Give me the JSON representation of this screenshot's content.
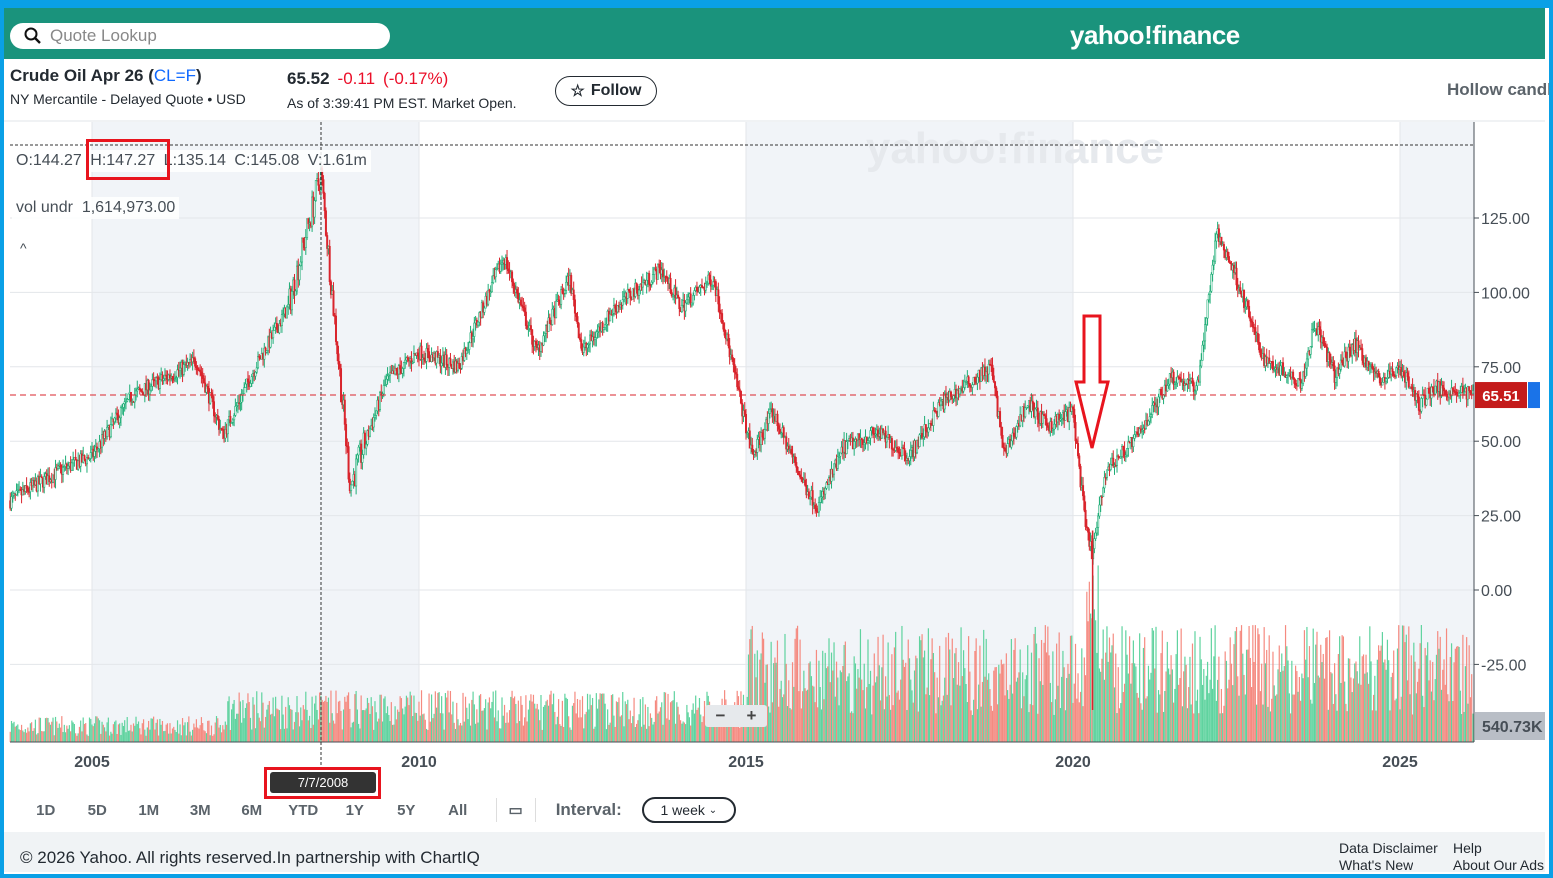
{
  "header": {
    "search_placeholder": "Quote Lookup",
    "logo": "yahoo!finance"
  },
  "quote": {
    "title": "Crude Oil Apr 26",
    "symbol": "CL=F",
    "subtitle": "NY Mercantile - Delayed Quote • USD",
    "price": "65.52",
    "change": "-0.11",
    "change_pct": "(-0.17%)",
    "as_of": "As of 3:39:41 PM EST. Market Open.",
    "follow_label": "Follow",
    "chart_type": "Hollow candle"
  },
  "crosshair": {
    "open": "O:144.27",
    "high": "H:147.27",
    "low": "L:135.14",
    "close": "C:145.08",
    "volume": "V:1.61m",
    "vol_undr_label": "vol undr",
    "vol_undr_value": "1,614,973.00",
    "date": "7/7/2008"
  },
  "chart_data": {
    "type": "candlestick",
    "y_ticks": [
      "125.00",
      "100.00",
      "75.00",
      "50.00",
      "25.00",
      "0.00",
      "-25.00"
    ],
    "x_ticks": [
      "2005",
      "2010",
      "2015",
      "2020",
      "2025"
    ],
    "ylim": [
      -45,
      145
    ],
    "current_price_label": "65.51",
    "volume_label": "540.73K",
    "up_color": "#1ead76",
    "down_color": "#d9252d",
    "watermark": "yahoo!finance",
    "price_path": [
      [
        2003.75,
        30
      ],
      [
        2004.5,
        40
      ],
      [
        2005.0,
        45
      ],
      [
        2005.6,
        65
      ],
      [
        2006.6,
        77
      ],
      [
        2007.0,
        52
      ],
      [
        2007.5,
        75
      ],
      [
        2008.0,
        95
      ],
      [
        2008.5,
        140
      ],
      [
        2008.95,
        35
      ],
      [
        2009.5,
        70
      ],
      [
        2010,
        80
      ],
      [
        2010.6,
        75
      ],
      [
        2011.3,
        112
      ],
      [
        2011.8,
        80
      ],
      [
        2012.3,
        105
      ],
      [
        2012.5,
        80
      ],
      [
        2013,
        95
      ],
      [
        2013.7,
        108
      ],
      [
        2014,
        95
      ],
      [
        2014.5,
        105
      ],
      [
        2014.9,
        65
      ],
      [
        2015.1,
        45
      ],
      [
        2015.4,
        60
      ],
      [
        2015.9,
        35
      ],
      [
        2016.1,
        28
      ],
      [
        2016.5,
        48
      ],
      [
        2017,
        53
      ],
      [
        2017.5,
        45
      ],
      [
        2018,
        63
      ],
      [
        2018.75,
        75
      ],
      [
        2018.95,
        45
      ],
      [
        2019.3,
        63
      ],
      [
        2019.6,
        55
      ],
      [
        2020.0,
        60
      ],
      [
        2020.2,
        20
      ],
      [
        2020.3,
        12
      ],
      [
        2020.5,
        40
      ],
      [
        2021,
        52
      ],
      [
        2021.5,
        72
      ],
      [
        2021.9,
        68
      ],
      [
        2022.2,
        120
      ],
      [
        2022.5,
        105
      ],
      [
        2022.9,
        78
      ],
      [
        2023.5,
        70
      ],
      [
        2023.7,
        90
      ],
      [
        2024,
        72
      ],
      [
        2024.3,
        83
      ],
      [
        2024.7,
        70
      ],
      [
        2025,
        75
      ],
      [
        2025.3,
        62
      ],
      [
        2025.5,
        68
      ],
      [
        2026.2,
        65.5
      ]
    ]
  },
  "ranges": [
    "1D",
    "5D",
    "1M",
    "3M",
    "6M",
    "YTD",
    "1Y",
    "5Y",
    "All"
  ],
  "interval": {
    "label": "Interval:",
    "value": "1 week"
  },
  "zoom": {
    "minus": "−",
    "plus": "+"
  },
  "footer": {
    "copyright": "© 2026 Yahoo. All rights reserved.In partnership with ChartIQ",
    "links": [
      "Data Disclaimer",
      "Help",
      "What's New",
      "About Our Ads"
    ]
  }
}
